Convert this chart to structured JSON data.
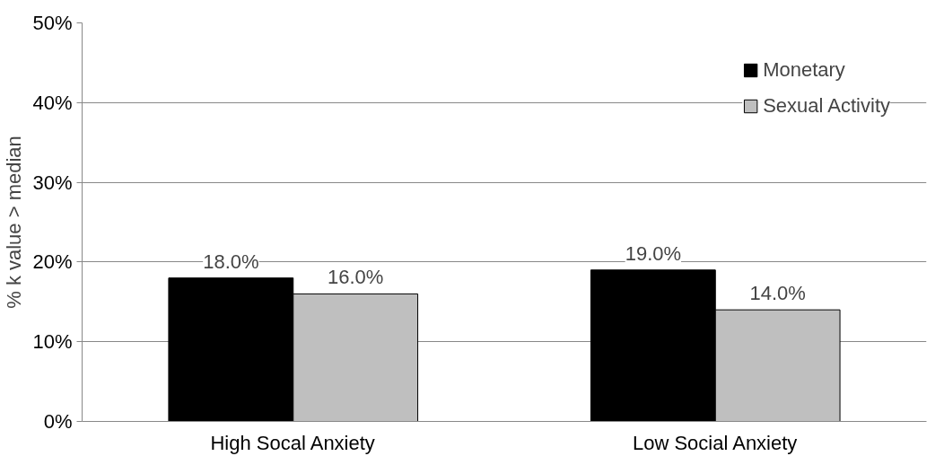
{
  "chart_data": {
    "type": "bar",
    "ylabel": "% k value > median",
    "categories": [
      "High Socal Anxiety",
      "Low Social Anxiety"
    ],
    "series": [
      {
        "name": "Monetary",
        "color": "#000000",
        "values": [
          18,
          19
        ],
        "value_labels": [
          "18.0%",
          "19.0%"
        ]
      },
      {
        "name": "Sexual Activity",
        "color": "#bfbfbf",
        "values": [
          16,
          14
        ],
        "value_labels": [
          "16.0%",
          "14.0%"
        ]
      }
    ],
    "ylim": [
      0,
      50
    ],
    "yticks": [
      {
        "value": 0,
        "label": "0%"
      },
      {
        "value": 10,
        "label": "10%"
      },
      {
        "value": 20,
        "label": "20%"
      },
      {
        "value": 30,
        "label": "30%"
      },
      {
        "value": 40,
        "label": "40%"
      },
      {
        "value": 50,
        "label": "50%"
      }
    ],
    "grid": "y",
    "legend": "top right"
  }
}
